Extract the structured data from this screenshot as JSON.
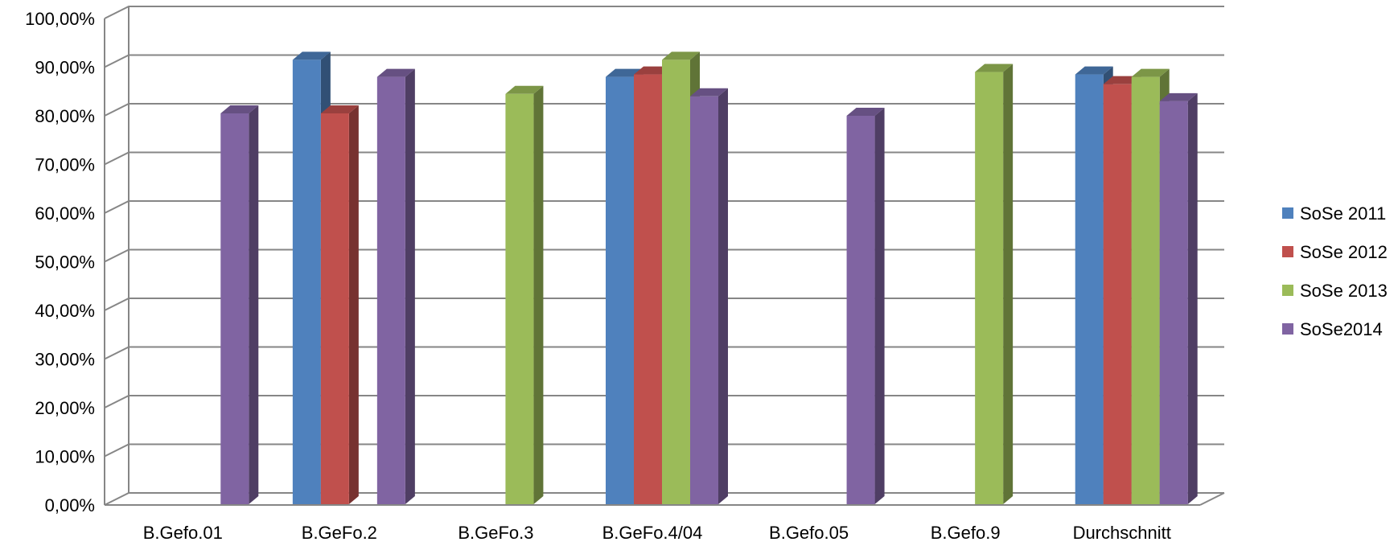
{
  "chart_data": {
    "type": "bar",
    "title": "",
    "xlabel": "",
    "ylabel": "",
    "ylim": [
      0,
      100
    ],
    "y_tick_values": [
      0,
      10,
      20,
      30,
      40,
      50,
      60,
      70,
      80,
      90,
      100
    ],
    "y_tick_labels": [
      "0,00%",
      "10,00%",
      "20,00%",
      "30,00%",
      "40,00%",
      "50,00%",
      "60,00%",
      "70,00%",
      "80,00%",
      "90,00%",
      "100,00%"
    ],
    "grid": true,
    "legend_position": "right",
    "categories": [
      "B.Gefo.01",
      "B.GeFo.2",
      "B.GeFo.3",
      "B.GeFo.4/04",
      "B.Gefo.05",
      "B.Gefo.9",
      "Durchschnitt"
    ],
    "series": [
      {
        "name": "SoSe 2011",
        "color": "#4F81BD",
        "values": [
          null,
          91.5,
          null,
          88.0,
          null,
          null,
          88.5
        ]
      },
      {
        "name": "SoSe 2012",
        "color": "#C0504D",
        "values": [
          null,
          80.5,
          null,
          88.5,
          null,
          null,
          86.5
        ]
      },
      {
        "name": "SoSe 2013",
        "color": "#9BBB59",
        "values": [
          null,
          null,
          84.5,
          91.5,
          null,
          89.0,
          88.0
        ]
      },
      {
        "name": "SoSe2014",
        "color": "#8064A2",
        "values": [
          80.5,
          88.0,
          null,
          84.0,
          80.0,
          null,
          83.0
        ]
      }
    ]
  }
}
